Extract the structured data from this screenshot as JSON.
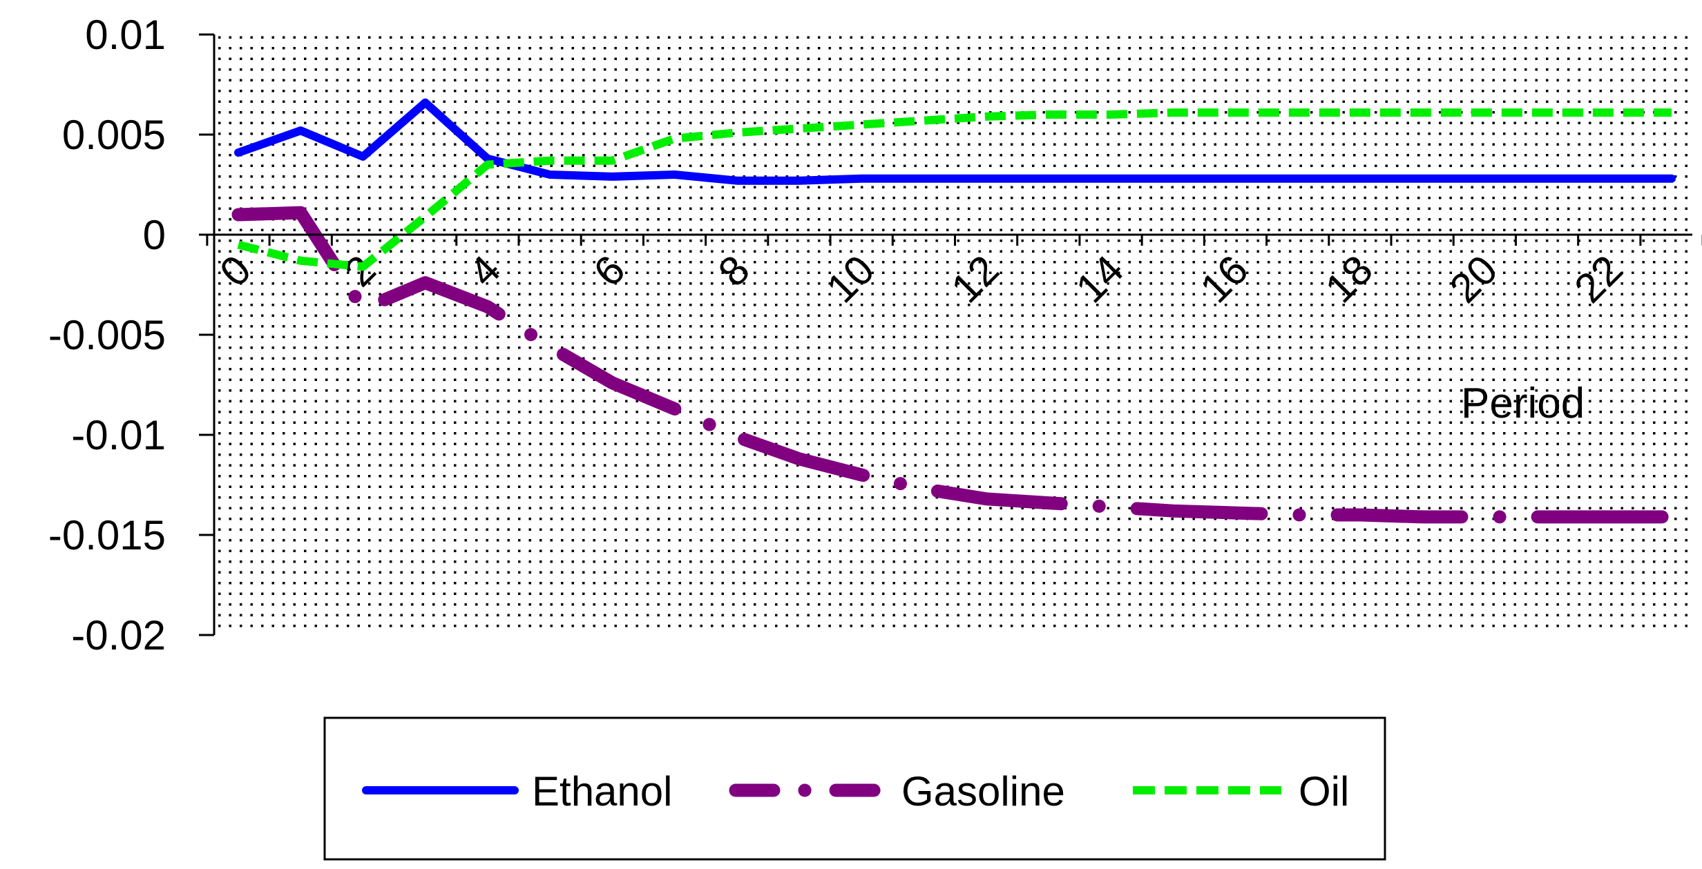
{
  "chart_data": {
    "type": "line",
    "title": "",
    "xlabel": "Period",
    "ylabel": "",
    "x": [
      0,
      1,
      2,
      3,
      4,
      5,
      6,
      7,
      8,
      9,
      10,
      11,
      12,
      13,
      14,
      15,
      16,
      17,
      18,
      19,
      20,
      21,
      22,
      23
    ],
    "xticks": [
      0,
      2,
      4,
      6,
      8,
      10,
      12,
      14,
      16,
      18,
      20,
      22
    ],
    "yticks": [
      0.01,
      0.005,
      0,
      -0.005,
      -0.01,
      -0.015,
      -0.02
    ],
    "ytick_labels": [
      "0.01",
      "0.005",
      "0",
      "-0.005",
      "-0.01",
      "-0.015",
      "-0.02"
    ],
    "ylim": [
      -0.02,
      0.01
    ],
    "xlim": [
      0,
      23.5
    ],
    "grid": "dotted background",
    "legend": "bottom",
    "series": [
      {
        "name": "Ethanol",
        "color": "#0000ff",
        "style": "solid",
        "values": [
          0.0041,
          0.0052,
          0.0039,
          0.0066,
          0.0038,
          0.003,
          0.0029,
          0.003,
          0.0027,
          0.0027,
          0.0028,
          0.0028,
          0.0028,
          0.0028,
          0.0028,
          0.0028,
          0.0028,
          0.0028,
          0.0028,
          0.0028,
          0.0028,
          0.0028,
          0.0028,
          0.0028
        ]
      },
      {
        "name": "Gasoline",
        "color": "#800080",
        "style": "dash-dot",
        "values": [
          0.001,
          0.0011,
          -0.0037,
          -0.0024,
          -0.0036,
          -0.0056,
          -0.0074,
          -0.0087,
          -0.0101,
          -0.0112,
          -0.012,
          -0.0127,
          -0.0132,
          -0.0134,
          -0.0136,
          -0.0138,
          -0.0139,
          -0.014,
          -0.014,
          -0.0141,
          -0.0141,
          -0.0141,
          -0.0141,
          -0.0141
        ]
      },
      {
        "name": "Oil",
        "color": "#00ee00",
        "style": "dashed",
        "values": [
          -0.0005,
          -0.0013,
          -0.0016,
          0.0009,
          0.0035,
          0.0037,
          0.0037,
          0.0048,
          0.0051,
          0.0053,
          0.0055,
          0.0057,
          0.0059,
          0.006,
          0.006,
          0.0061,
          0.0061,
          0.0061,
          0.0061,
          0.0061,
          0.0061,
          0.0061,
          0.0061,
          0.0061
        ]
      }
    ]
  }
}
